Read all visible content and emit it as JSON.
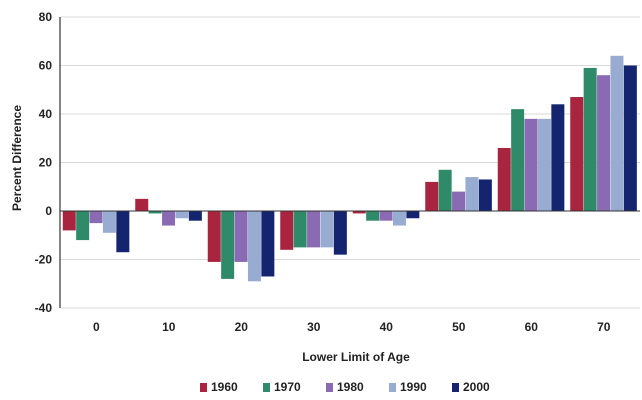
{
  "chart_data": {
    "type": "bar",
    "xlabel": "Lower Limit of Age",
    "ylabel": "Percent Difference",
    "ylim": [
      -40,
      80
    ],
    "yticks": [
      -40,
      -20,
      0,
      20,
      40,
      60,
      80
    ],
    "ytick_labels": [
      "-40",
      "-20",
      "0",
      "20",
      "40",
      "60",
      "80"
    ],
    "grid": true,
    "legend": "bottom",
    "categories": [
      "0",
      "10",
      "20",
      "30",
      "40",
      "50",
      "60",
      "70"
    ],
    "series": [
      {
        "name": "1960",
        "color": "#a8243f",
        "values": [
          -8,
          5,
          -21,
          -16,
          -1,
          12,
          26,
          47
        ]
      },
      {
        "name": "1970",
        "color": "#2e8a68",
        "values": [
          -12,
          -1,
          -28,
          -15,
          -4,
          17,
          42,
          59
        ]
      },
      {
        "name": "1980",
        "color": "#8a6bb3",
        "values": [
          -5,
          -6,
          -21,
          -15,
          -4,
          8,
          38,
          56
        ]
      },
      {
        "name": "1990",
        "color": "#98acd2",
        "values": [
          -9,
          -3,
          -29,
          -15,
          -6,
          14,
          38,
          64
        ]
      },
      {
        "name": "2000",
        "color": "#14246e",
        "values": [
          -17,
          -4,
          -27,
          -18,
          -3,
          13,
          44,
          60
        ]
      }
    ]
  }
}
